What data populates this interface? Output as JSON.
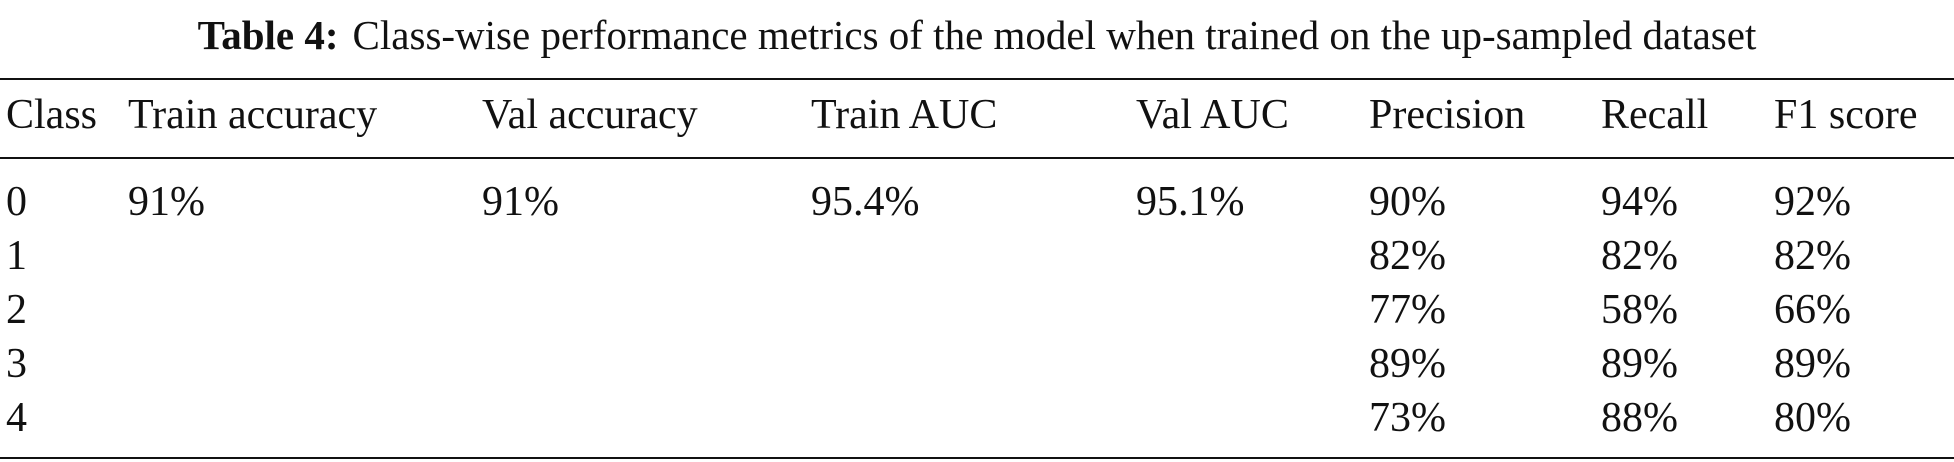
{
  "header": {
    "label": "Table 4:",
    "title": "Class-wise performance metrics of the model when trained on the up-sampled dataset"
  },
  "table": {
    "columns": [
      "Class",
      "Train accuracy",
      "Val accuracy",
      "Train AUC",
      "Val AUC",
      "Precision",
      "Recall",
      "F1 score"
    ],
    "rows": [
      [
        "0",
        "91%",
        "91%",
        "95.4%",
        "95.1%",
        "90%",
        "94%",
        "92%"
      ],
      [
        "1",
        null,
        null,
        null,
        null,
        "82%",
        "82%",
        "82%"
      ],
      [
        "2",
        null,
        null,
        null,
        null,
        "77%",
        "58%",
        "66%"
      ],
      [
        "3",
        null,
        null,
        null,
        null,
        "89%",
        "89%",
        "89%"
      ],
      [
        "4",
        null,
        null,
        null,
        null,
        "73%",
        "88%",
        "80%"
      ]
    ]
  }
}
